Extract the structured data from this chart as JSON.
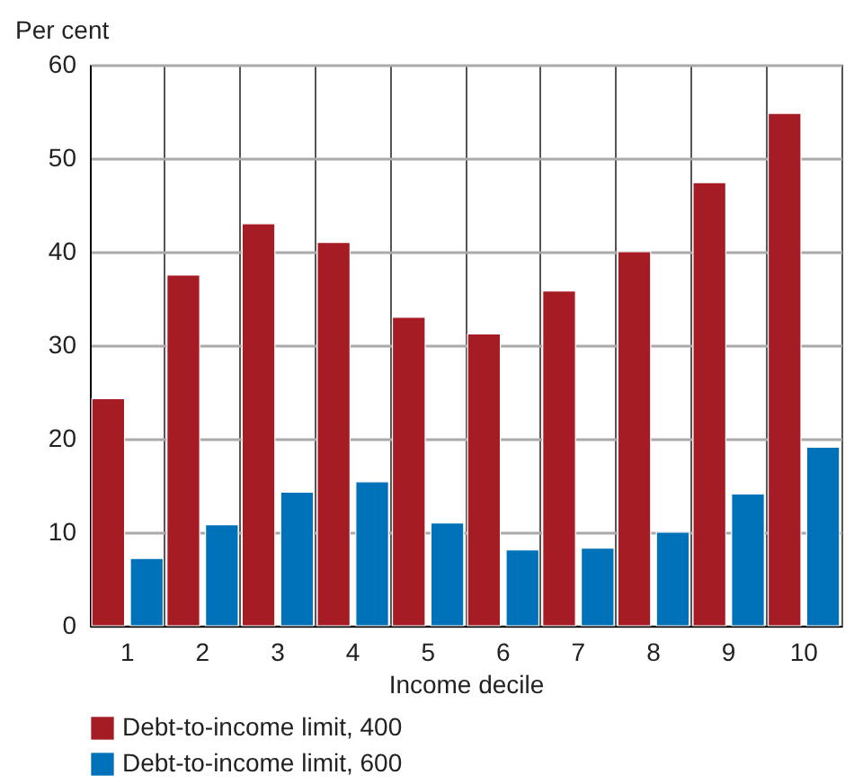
{
  "chart_data": {
    "type": "bar",
    "ylabel": "Per cent",
    "xlabel": "Income decile",
    "categories": [
      "1",
      "2",
      "3",
      "4",
      "5",
      "6",
      "7",
      "8",
      "9",
      "10"
    ],
    "series": [
      {
        "name": "Debt-to-income limit, 400",
        "color": "#a51c24",
        "values": [
          24.3,
          37.5,
          43,
          41,
          33,
          31.2,
          35.8,
          40,
          47.4,
          54.8
        ]
      },
      {
        "name": "Debt-to-income limit, 600",
        "color": "#0072b9",
        "values": [
          7.2,
          10.8,
          14.3,
          15.4,
          11,
          8.1,
          8.3,
          10,
          14.1,
          19.1
        ]
      }
    ],
    "ylim": [
      0,
      60
    ],
    "yticks": [
      0,
      10,
      20,
      30,
      40,
      50,
      60
    ],
    "grid": true,
    "legend": "bottom"
  }
}
